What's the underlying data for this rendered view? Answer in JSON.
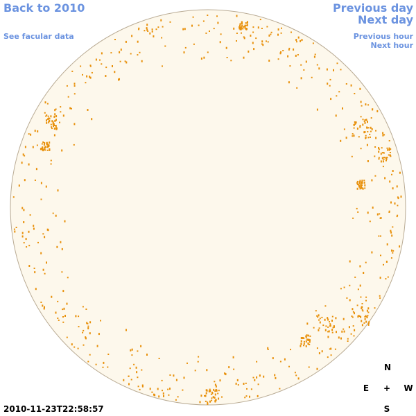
{
  "nav": {
    "back": "Back to 2010",
    "facular": "See facular data",
    "previous_day": "Previous day",
    "next_day": "Next day",
    "previous_hour": "Previous hour",
    "next_hour": "Next hour"
  },
  "timestamp": "2010-11-23T22:58:57",
  "compass": {
    "north": "N",
    "east": "E",
    "center": "+",
    "west": "W",
    "south": "S"
  }
}
